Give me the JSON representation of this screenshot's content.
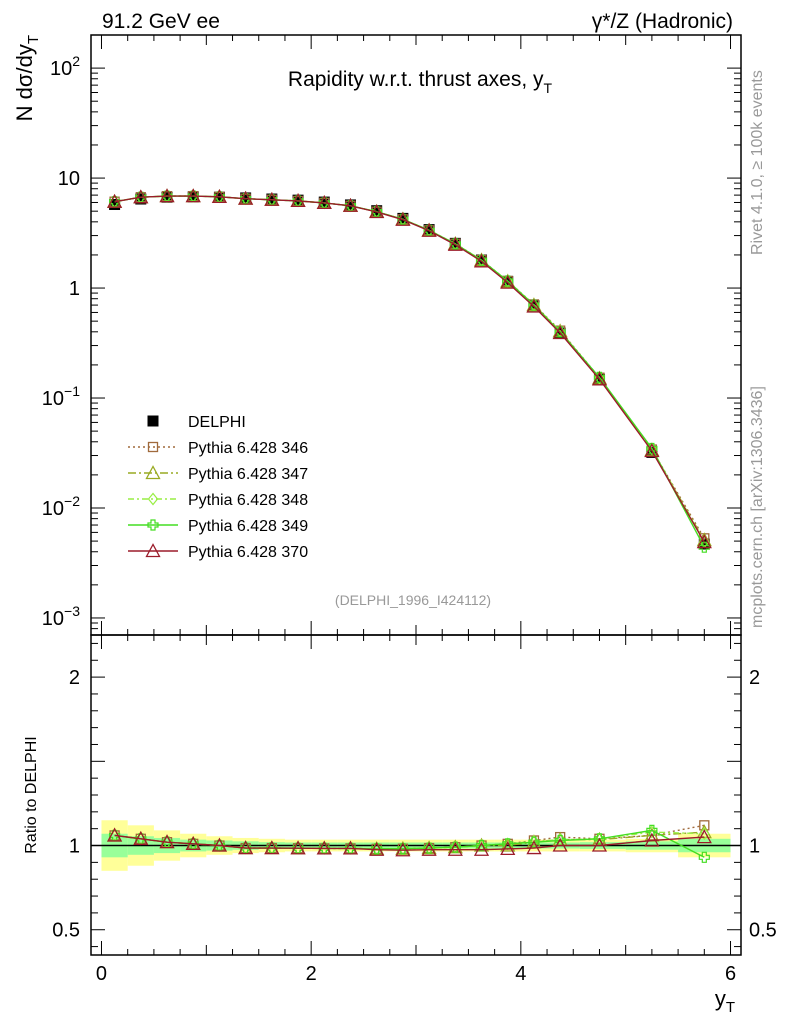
{
  "header": {
    "energy_label": "91.2 GeV ee",
    "process_label": "γ*/Z (Hadronic)"
  },
  "side_labels": {
    "rivet": "Rivet 4.1.0, ≥ 100k events",
    "mcplots": "mcplots.cern.ch [arXiv:1306.3436]"
  },
  "chart_data": [
    {
      "type": "line",
      "panel": "main",
      "title": "Rapidity w.r.t. thrust axes, y_T",
      "ylabel": "N  dσ/dy_T",
      "yscale": "log",
      "xlim": [
        -0.1,
        6.1
      ],
      "ylim": [
        0.0007,
        200
      ],
      "ytick_labels": [
        {
          "value": 0.001,
          "base": "10",
          "exp": "−3"
        },
        {
          "value": 0.01,
          "base": "10",
          "exp": "−2"
        },
        {
          "value": 0.1,
          "base": "10",
          "exp": "−1"
        },
        {
          "value": 1,
          "base": "1",
          "exp": ""
        },
        {
          "value": 10,
          "base": "10",
          "exp": ""
        },
        {
          "value": 100,
          "base": "10",
          "exp": "2"
        }
      ],
      "annotation": "(DELPHI_1996_I424112)",
      "legend_position": "lower-left",
      "x": [
        0.125,
        0.375,
        0.625,
        0.875,
        1.125,
        1.375,
        1.625,
        1.875,
        2.125,
        2.375,
        2.625,
        2.875,
        3.125,
        3.375,
        3.625,
        3.875,
        4.125,
        4.375,
        4.75,
        5.25,
        5.75
      ],
      "series": [
        {
          "name": "DELPHI",
          "color": "#000000",
          "marker": "square-filled",
          "values": [
            5.75,
            6.45,
            6.7,
            6.75,
            6.7,
            6.6,
            6.45,
            6.3,
            6.05,
            5.7,
            5.05,
            4.3,
            3.4,
            2.55,
            1.8,
            1.15,
            0.69,
            0.39,
            0.148,
            0.032,
            0.0047
          ]
        },
        {
          "name": "Pythia 6.428 346",
          "color": "#a06a3c",
          "marker": "square-open",
          "dash": "2,3",
          "values": [
            6.1,
            6.7,
            6.85,
            6.85,
            6.75,
            6.5,
            6.35,
            6.2,
            5.95,
            5.6,
            4.95,
            4.22,
            3.35,
            2.53,
            1.8,
            1.16,
            0.71,
            0.41,
            0.153,
            0.034,
            0.0053
          ]
        },
        {
          "name": "Pythia 6.428 347",
          "color": "#99aa22",
          "marker": "triangle-open",
          "dash": "8,3,2,3",
          "values": [
            6.1,
            6.7,
            6.85,
            6.85,
            6.75,
            6.5,
            6.35,
            6.2,
            5.95,
            5.6,
            4.95,
            4.22,
            3.35,
            2.52,
            1.79,
            1.15,
            0.7,
            0.405,
            0.151,
            0.0335,
            0.0051
          ]
        },
        {
          "name": "Pythia 6.428 348",
          "color": "#99ee44",
          "marker": "diamond-open",
          "dash": "6,3,2,3",
          "values": [
            6.1,
            6.7,
            6.85,
            6.85,
            6.75,
            6.5,
            6.35,
            6.2,
            5.95,
            5.6,
            4.95,
            4.22,
            3.35,
            2.52,
            1.79,
            1.16,
            0.705,
            0.405,
            0.152,
            0.0345,
            0.0049
          ]
        },
        {
          "name": "Pythia 6.428 349",
          "color": "#44dd22",
          "marker": "cross-open",
          "dash": "",
          "values": [
            6.1,
            6.7,
            6.85,
            6.85,
            6.75,
            6.5,
            6.35,
            6.2,
            5.95,
            5.6,
            4.95,
            4.22,
            3.35,
            2.52,
            1.79,
            1.16,
            0.7,
            0.4,
            0.154,
            0.0348,
            0.0044
          ]
        },
        {
          "name": "Pythia 6.428 370",
          "color": "#9b1b2a",
          "marker": "triangle-open",
          "dash": "",
          "values": [
            6.1,
            6.7,
            6.85,
            6.85,
            6.75,
            6.5,
            6.35,
            6.2,
            5.95,
            5.6,
            4.92,
            4.18,
            3.32,
            2.48,
            1.75,
            1.12,
            0.68,
            0.39,
            0.148,
            0.033,
            0.0049
          ]
        }
      ]
    },
    {
      "type": "line",
      "panel": "ratio",
      "ylabel": "Ratio to DELPHI",
      "xlabel": "y_T",
      "xlim": [
        -0.1,
        6.1
      ],
      "ylim": [
        0.35,
        2.25
      ],
      "xtick_labels": [
        "0",
        "2",
        "4",
        "6"
      ],
      "ytick_labels": [
        "0.5",
        "1",
        "2"
      ],
      "x": [
        0.125,
        0.375,
        0.625,
        0.875,
        1.125,
        1.375,
        1.625,
        1.875,
        2.125,
        2.375,
        2.625,
        2.875,
        3.125,
        3.375,
        3.625,
        3.875,
        4.125,
        4.375,
        4.75,
        5.25,
        5.75
      ],
      "bands": {
        "yellow": [
          0.15,
          0.12,
          0.09,
          0.07,
          0.055,
          0.045,
          0.04,
          0.035,
          0.035,
          0.035,
          0.035,
          0.035,
          0.035,
          0.035,
          0.035,
          0.035,
          0.035,
          0.035,
          0.035,
          0.04,
          0.07
        ],
        "green": [
          0.07,
          0.055,
          0.045,
          0.035,
          0.03,
          0.025,
          0.02,
          0.018,
          0.018,
          0.018,
          0.018,
          0.018,
          0.018,
          0.018,
          0.018,
          0.018,
          0.018,
          0.018,
          0.02,
          0.025,
          0.04
        ]
      },
      "series": [
        {
          "name": "Pythia 6.428 346",
          "color": "#a06a3c",
          "marker": "square-open",
          "dash": "2,3",
          "values": [
            1.06,
            1.04,
            1.02,
            1.01,
            1.0,
            0.985,
            0.985,
            0.984,
            0.983,
            0.983,
            0.98,
            0.981,
            0.985,
            0.99,
            1.0,
            1.01,
            1.03,
            1.05,
            1.04,
            1.06,
            1.12
          ]
        },
        {
          "name": "Pythia 6.428 347",
          "color": "#99aa22",
          "marker": "triangle-open",
          "dash": "8,3,2,3",
          "values": [
            1.06,
            1.04,
            1.02,
            1.01,
            1.0,
            0.985,
            0.985,
            0.984,
            0.983,
            0.983,
            0.98,
            0.981,
            0.985,
            0.99,
            1.0,
            1.0,
            1.02,
            1.035,
            1.035,
            1.06,
            1.08
          ]
        },
        {
          "name": "Pythia 6.428 348",
          "color": "#99ee44",
          "marker": "diamond-open",
          "dash": "6,3,2,3",
          "values": [
            1.06,
            1.04,
            1.02,
            1.01,
            1.0,
            0.985,
            0.985,
            0.984,
            0.983,
            0.983,
            0.98,
            0.981,
            0.985,
            0.99,
            1.0,
            1.01,
            1.025,
            1.035,
            1.04,
            1.08,
            1.07
          ]
        },
        {
          "name": "Pythia 6.428 349",
          "color": "#44dd22",
          "marker": "cross-open",
          "dash": "",
          "values": [
            1.06,
            1.04,
            1.02,
            1.01,
            1.0,
            0.985,
            0.985,
            0.984,
            0.983,
            0.983,
            0.98,
            0.981,
            0.985,
            0.99,
            1.0,
            1.01,
            1.02,
            1.03,
            1.04,
            1.09,
            0.93
          ]
        },
        {
          "name": "Pythia 6.428 370",
          "color": "#9b1b2a",
          "marker": "triangle-open",
          "dash": "",
          "values": [
            1.06,
            1.04,
            1.02,
            1.01,
            1.0,
            0.985,
            0.985,
            0.984,
            0.983,
            0.983,
            0.975,
            0.972,
            0.975,
            0.975,
            0.975,
            0.98,
            0.985,
            1.0,
            1.0,
            1.03,
            1.05
          ]
        }
      ]
    }
  ]
}
